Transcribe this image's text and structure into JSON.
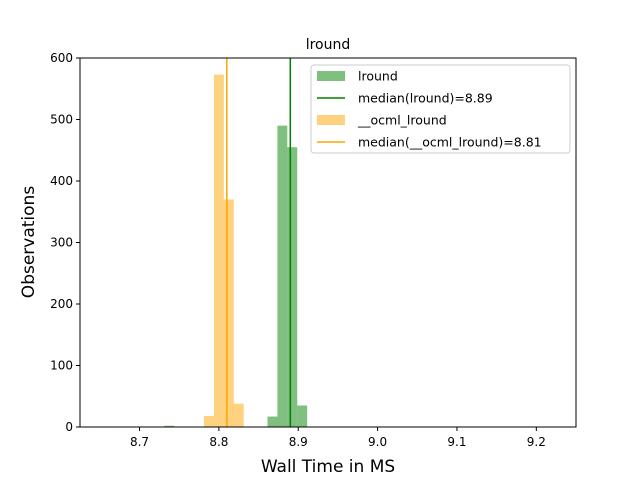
{
  "chart_data": {
    "type": "bar",
    "title": "lround",
    "xlabel": "Wall Time in MS",
    "ylabel": "Observations",
    "xlim": [
      8.625,
      9.25
    ],
    "ylim": [
      0,
      600
    ],
    "xticks": [
      "8.7",
      "8.8",
      "8.9",
      "9.0",
      "9.1",
      "9.2"
    ],
    "yticks": [
      "0",
      "100",
      "200",
      "300",
      "400",
      "500",
      "600"
    ],
    "grid": false,
    "legend_position": "top-right",
    "bin_width": 0.0125,
    "series": [
      {
        "name": "lround",
        "kind": "histogram",
        "color": "#008000",
        "alpha": 0.5,
        "bins": [
          {
            "x": 8.7375,
            "count": 2
          },
          {
            "x": 8.8675,
            "count": 17
          },
          {
            "x": 8.88,
            "count": 490
          },
          {
            "x": 8.8925,
            "count": 455
          },
          {
            "x": 8.905,
            "count": 35
          }
        ]
      },
      {
        "name": "median(lround)=8.89",
        "kind": "vline",
        "color": "#008000",
        "x": 8.89
      },
      {
        "name": "__ocml_lround",
        "kind": "histogram",
        "color": "#FFA500",
        "alpha": 0.5,
        "bins": [
          {
            "x": 8.655,
            "count": 1
          },
          {
            "x": 8.7875,
            "count": 18
          },
          {
            "x": 8.8,
            "count": 573
          },
          {
            "x": 8.8125,
            "count": 370
          },
          {
            "x": 8.825,
            "count": 38
          }
        ]
      },
      {
        "name": "median(__ocml_lround)=8.81",
        "kind": "vline",
        "color": "#FFA500",
        "x": 8.81
      }
    ]
  }
}
